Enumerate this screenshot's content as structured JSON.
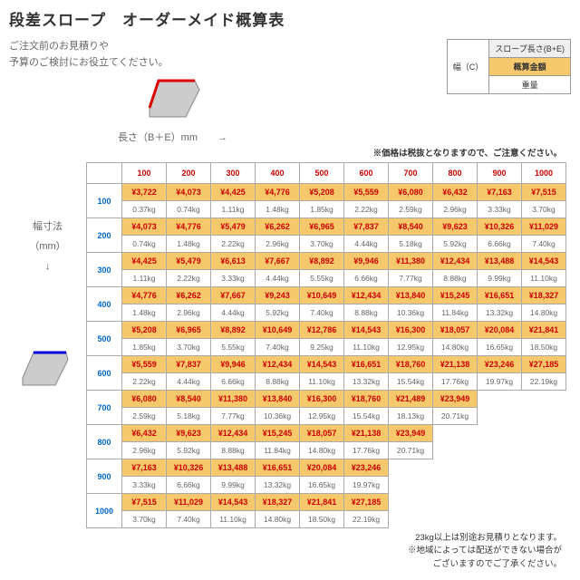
{
  "title": "段差スロープ　オーダーメイド概算表",
  "subtitle1": "ご注文前のお見積りや",
  "subtitle2": "予算のご検討にお役立てください。",
  "legend": {
    "len": "スロープ長さ(B+E)",
    "w": "幅（C）",
    "price": "概算金額",
    "weight": "重量",
    "legend_bg": "#f5c96b"
  },
  "axis_len": "長さ（B＋E）mm　　→",
  "price_note": "※価格は税抜となりますので、ご注意ください。",
  "side_label1": "幅寸法",
  "side_label2": "（mm）",
  "side_label3": "↓",
  "lengths": [
    "100",
    "200",
    "300",
    "400",
    "500",
    "600",
    "700",
    "800",
    "900",
    "1000"
  ],
  "widths": [
    "100",
    "200",
    "300",
    "400",
    "500",
    "600",
    "700",
    "800",
    "900",
    "1000"
  ],
  "colors": {
    "len_header": "#c00",
    "width_header": "#0066cc",
    "price_bg": "#f5c96b",
    "price_text": "#cc0000",
    "weight_text": "#666666",
    "border": "#aaaaaa"
  },
  "prices": [
    [
      "¥3,722",
      "¥4,073",
      "¥4,425",
      "¥4,776",
      "¥5,208",
      "¥5,559",
      "¥6,080",
      "¥6,432",
      "¥7,163",
      "¥7,515"
    ],
    [
      "¥4,073",
      "¥4,776",
      "¥5,479",
      "¥6,262",
      "¥6,965",
      "¥7,837",
      "¥8,540",
      "¥9,623",
      "¥10,326",
      "¥11,029"
    ],
    [
      "¥4,425",
      "¥5,479",
      "¥6,613",
      "¥7,667",
      "¥8,892",
      "¥9,946",
      "¥11,380",
      "¥12,434",
      "¥13,488",
      "¥14,543"
    ],
    [
      "¥4,776",
      "¥6,262",
      "¥7,667",
      "¥9,243",
      "¥10,649",
      "¥12,434",
      "¥13,840",
      "¥15,245",
      "¥16,651",
      "¥18,327"
    ],
    [
      "¥5,208",
      "¥6,965",
      "¥8,892",
      "¥10,649",
      "¥12,786",
      "¥14,543",
      "¥16,300",
      "¥18,057",
      "¥20,084",
      "¥21,841"
    ],
    [
      "¥5,559",
      "¥7,837",
      "¥9,946",
      "¥12,434",
      "¥14,543",
      "¥16,651",
      "¥18,760",
      "¥21,138",
      "¥23,246",
      "¥27,185"
    ],
    [
      "¥6,080",
      "¥8,540",
      "¥11,380",
      "¥13,840",
      "¥16,300",
      "¥18,760",
      "¥21,489",
      "¥23,949",
      "",
      ""
    ],
    [
      "¥6,432",
      "¥9,623",
      "¥12,434",
      "¥15,245",
      "¥18,057",
      "¥21,138",
      "¥23,949",
      "",
      "",
      ""
    ],
    [
      "¥7,163",
      "¥10,326",
      "¥13,488",
      "¥16,651",
      "¥20,084",
      "¥23,246",
      "",
      "",
      "",
      ""
    ],
    [
      "¥7,515",
      "¥11,029",
      "¥14,543",
      "¥18,327",
      "¥21,841",
      "¥27,185",
      "",
      "",
      "",
      ""
    ]
  ],
  "weights": [
    [
      "0.37kg",
      "0.74kg",
      "1.11kg",
      "1.48kg",
      "1.85kg",
      "2.22kg",
      "2.59kg",
      "2.96kg",
      "3.33kg",
      "3.70kg"
    ],
    [
      "0.74kg",
      "1.48kg",
      "2.22kg",
      "2.96kg",
      "3.70kg",
      "4.44kg",
      "5.18kg",
      "5.92kg",
      "6.66kg",
      "7.40kg"
    ],
    [
      "1.11kg",
      "2.22kg",
      "3.33kg",
      "4.44kg",
      "5.55kg",
      "6.66kg",
      "7.77kg",
      "8.88kg",
      "9.99kg",
      "11.10kg"
    ],
    [
      "1.48kg",
      "2.96kg",
      "4.44kg",
      "5.92kg",
      "7.40kg",
      "8.88kg",
      "10.36kg",
      "11.84kg",
      "13.32kg",
      "14.80kg"
    ],
    [
      "1.85kg",
      "3.70kg",
      "5.55kg",
      "7.40kg",
      "9.25kg",
      "11.10kg",
      "12.95kg",
      "14.80kg",
      "16.65kg",
      "18.50kg"
    ],
    [
      "2.22kg",
      "4.44kg",
      "6.66kg",
      "8.88kg",
      "11.10kg",
      "13.32kg",
      "15.54kg",
      "17.76kg",
      "19.97kg",
      "22.19kg"
    ],
    [
      "2.59kg",
      "5.18kg",
      "7.77kg",
      "10.36kg",
      "12.95kg",
      "15.54kg",
      "18.13kg",
      "20.71kg",
      "",
      ""
    ],
    [
      "2.96kg",
      "5.92kg",
      "8.88kg",
      "11.84kg",
      "14.80kg",
      "17.76kg",
      "20.71kg",
      "",
      "",
      ""
    ],
    [
      "3.33kg",
      "6.66kg",
      "9.99kg",
      "13.32kg",
      "16.65kg",
      "19.97kg",
      "",
      "",
      "",
      ""
    ],
    [
      "3.70kg",
      "7.40kg",
      "11.10kg",
      "14.80kg",
      "18.50kg",
      "22.19kg",
      "",
      "",
      "",
      ""
    ]
  ],
  "footer1": "23kg以上は別途お見積りとなります。",
  "footer2": "※地域によっては配送ができない場合が",
  "footer3": "ございますのでご了承ください。"
}
